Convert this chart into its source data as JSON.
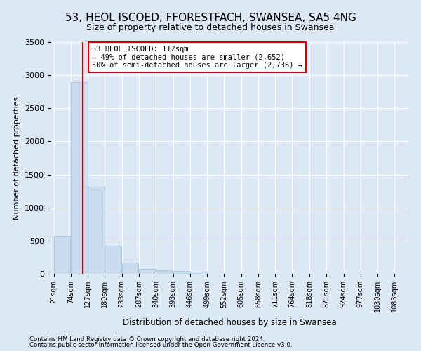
{
  "title": "53, HEOL ISCOED, FFORESTFACH, SWANSEA, SA5 4NG",
  "subtitle": "Size of property relative to detached houses in Swansea",
  "xlabel": "Distribution of detached houses by size in Swansea",
  "ylabel": "Number of detached properties",
  "footer_line1": "Contains HM Land Registry data © Crown copyright and database right 2024.",
  "footer_line2": "Contains public sector information licensed under the Open Government Licence v3.0.",
  "bins": [
    21,
    74,
    127,
    180,
    233,
    287,
    340,
    393,
    446,
    499,
    552,
    605,
    658,
    711,
    764,
    818,
    871,
    924,
    977,
    1030,
    1083
  ],
  "bin_labels": [
    "21sqm",
    "74sqm",
    "127sqm",
    "180sqm",
    "233sqm",
    "287sqm",
    "340sqm",
    "393sqm",
    "446sqm",
    "499sqm",
    "552sqm",
    "605sqm",
    "658sqm",
    "711sqm",
    "764sqm",
    "818sqm",
    "871sqm",
    "924sqm",
    "977sqm",
    "1030sqm",
    "1083sqm"
  ],
  "counts": [
    570,
    2900,
    1310,
    420,
    165,
    75,
    50,
    40,
    35,
    0,
    0,
    0,
    0,
    0,
    0,
    0,
    0,
    0,
    0,
    0
  ],
  "bar_color": "#c8dced",
  "bar_edge_color": "#a8c4de",
  "property_size": 112,
  "vline_color": "#cc0000",
  "annotation_text": "53 HEOL ISCOED: 112sqm\n← 49% of detached houses are smaller (2,652)\n50% of semi-detached houses are larger (2,736) →",
  "annotation_box_color": "#ffffff",
  "annotation_box_edge": "#cc0000",
  "ylim": [
    0,
    3500
  ],
  "yticks": [
    0,
    500,
    1000,
    1500,
    2000,
    2500,
    3000,
    3500
  ],
  "background_color": "#dce8f5",
  "plot_bg_color": "#dce8f5",
  "title_fontsize": 11,
  "subtitle_fontsize": 9
}
